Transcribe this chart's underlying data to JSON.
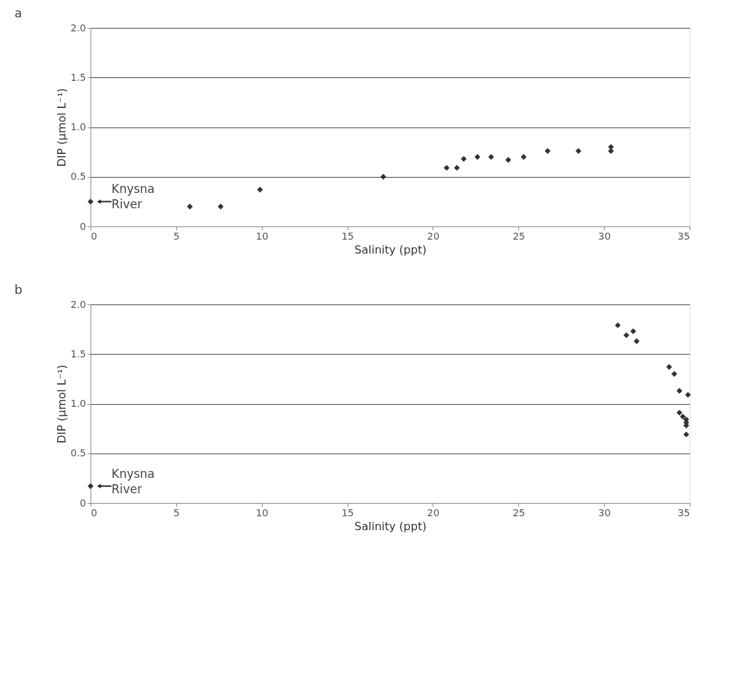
{
  "chart_data": [
    {
      "type": "scatter",
      "title": "a",
      "xlabel": "Salinity (ppt)",
      "ylabel": "DIP (µmol L⁻¹)",
      "xlim": [
        0,
        35
      ],
      "xticks": [
        0,
        5,
        10,
        15,
        20,
        25,
        30,
        35
      ],
      "ylim": [
        0,
        2.0
      ],
      "yticks": [
        0,
        {
          "value": 0.5,
          "label": "0.5"
        },
        {
          "value": 1.0,
          "label": "1.0"
        },
        {
          "value": 1.5,
          "label": "1.5"
        },
        {
          "value": 2.0,
          "label": "2.0"
        }
      ],
      "grid": "y",
      "marker": "diamond",
      "series": [
        {
          "color": "#333333",
          "x": [
            0,
            5.8,
            7.6,
            9.9,
            17.1,
            20.8,
            21.4,
            21.8,
            22.6,
            23.4,
            24.4,
            25.3,
            26.7,
            28.5,
            30.4,
            30.4
          ],
          "values": [
            0.25,
            0.2,
            0.2,
            0.37,
            0.5,
            0.59,
            0.59,
            0.68,
            0.7,
            0.7,
            0.67,
            0.7,
            0.76,
            0.76,
            0.8,
            0.76
          ]
        }
      ],
      "annotations": [
        {
          "text": "Knysna River",
          "x": 0,
          "y": 0.25
        }
      ]
    },
    {
      "type": "scatter",
      "title": "b",
      "xlabel": "Salinity (ppt)",
      "ylabel": "DIP (µmol L⁻¹)",
      "xlim": [
        0,
        35
      ],
      "xticks": [
        0,
        5,
        10,
        15,
        20,
        25,
        30,
        35
      ],
      "ylim": [
        0,
        2.0
      ],
      "yticks": [
        0,
        {
          "value": 0.5,
          "label": "0.5"
        },
        {
          "value": 1.0,
          "label": "1.0"
        },
        {
          "value": 1.5,
          "label": "1.5"
        },
        {
          "value": 2.0,
          "label": "2.0"
        }
      ],
      "grid": "y",
      "marker": "diamond",
      "series": [
        {
          "color": "#333333",
          "x": [
            0,
            30.8,
            31.3,
            31.7,
            31.9,
            33.8,
            34.1,
            34.4,
            34.9,
            34.4,
            34.6,
            34.8,
            34.8,
            34.8,
            34.8
          ],
          "values": [
            0.17,
            1.79,
            1.69,
            1.73,
            1.63,
            1.37,
            1.3,
            1.13,
            1.09,
            0.91,
            0.87,
            0.84,
            0.81,
            0.78,
            0.69
          ]
        }
      ],
      "annotations": [
        {
          "text": "Knysna River",
          "x": 0,
          "y": 0.17
        }
      ]
    }
  ]
}
